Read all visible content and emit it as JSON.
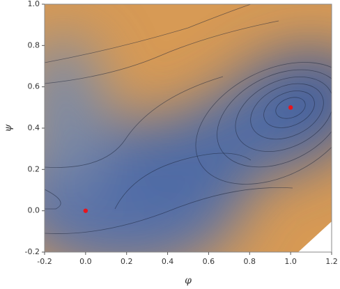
{
  "chart_data": {
    "type": "scatter",
    "x_label": "φ",
    "y_label": "ψ",
    "x": [
      0,
      1
    ],
    "values": [
      0,
      0.5
    ],
    "color": "#e8141c",
    "xlim": [
      -0.2,
      1.2
    ],
    "ylim": [
      -0.2,
      1.0
    ],
    "xticks": [
      -0.2,
      {
        "value": 0,
        "label": "0.0"
      },
      0.2,
      0.4,
      0.6,
      0.8,
      {
        "value": 1,
        "label": "1.0"
      },
      1.2
    ],
    "yticks": [
      -0.2,
      {
        "value": 0,
        "label": "0.0"
      },
      0.2,
      0.4,
      0.6,
      0.8,
      {
        "value": 1,
        "label": "1.0"
      }
    ]
  }
}
